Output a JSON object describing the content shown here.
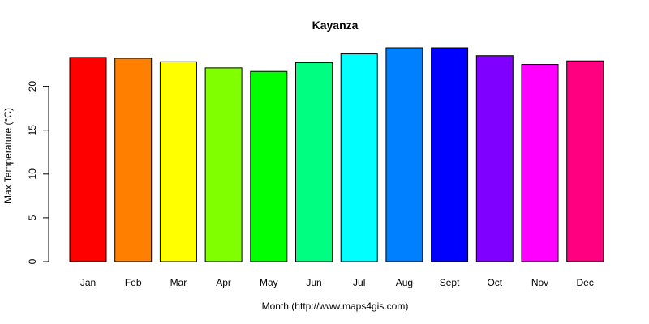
{
  "chart_data": {
    "type": "bar",
    "title": "Kayanza",
    "xlabel": "Month (http://www.maps4gis.com)",
    "ylabel": "Max Temperature (°C)",
    "categories": [
      "Jan",
      "Feb",
      "Mar",
      "Apr",
      "May",
      "Jun",
      "Jul",
      "Aug",
      "Sept",
      "Oct",
      "Nov",
      "Dec"
    ],
    "values": [
      23.3,
      23.2,
      22.8,
      22.1,
      21.7,
      22.7,
      23.7,
      24.4,
      24.4,
      23.5,
      22.5,
      22.9
    ],
    "colors": [
      "#FF0000",
      "#FF8000",
      "#FFFF00",
      "#80FF00",
      "#00FF00",
      "#00FF80",
      "#00FFFF",
      "#0080FF",
      "#0000FF",
      "#8000FF",
      "#FF00FF",
      "#FF0080"
    ],
    "yticks": [
      0,
      5,
      10,
      15,
      20
    ],
    "ylim": [
      0,
      24.4
    ],
    "grid": false,
    "legend": "none"
  }
}
